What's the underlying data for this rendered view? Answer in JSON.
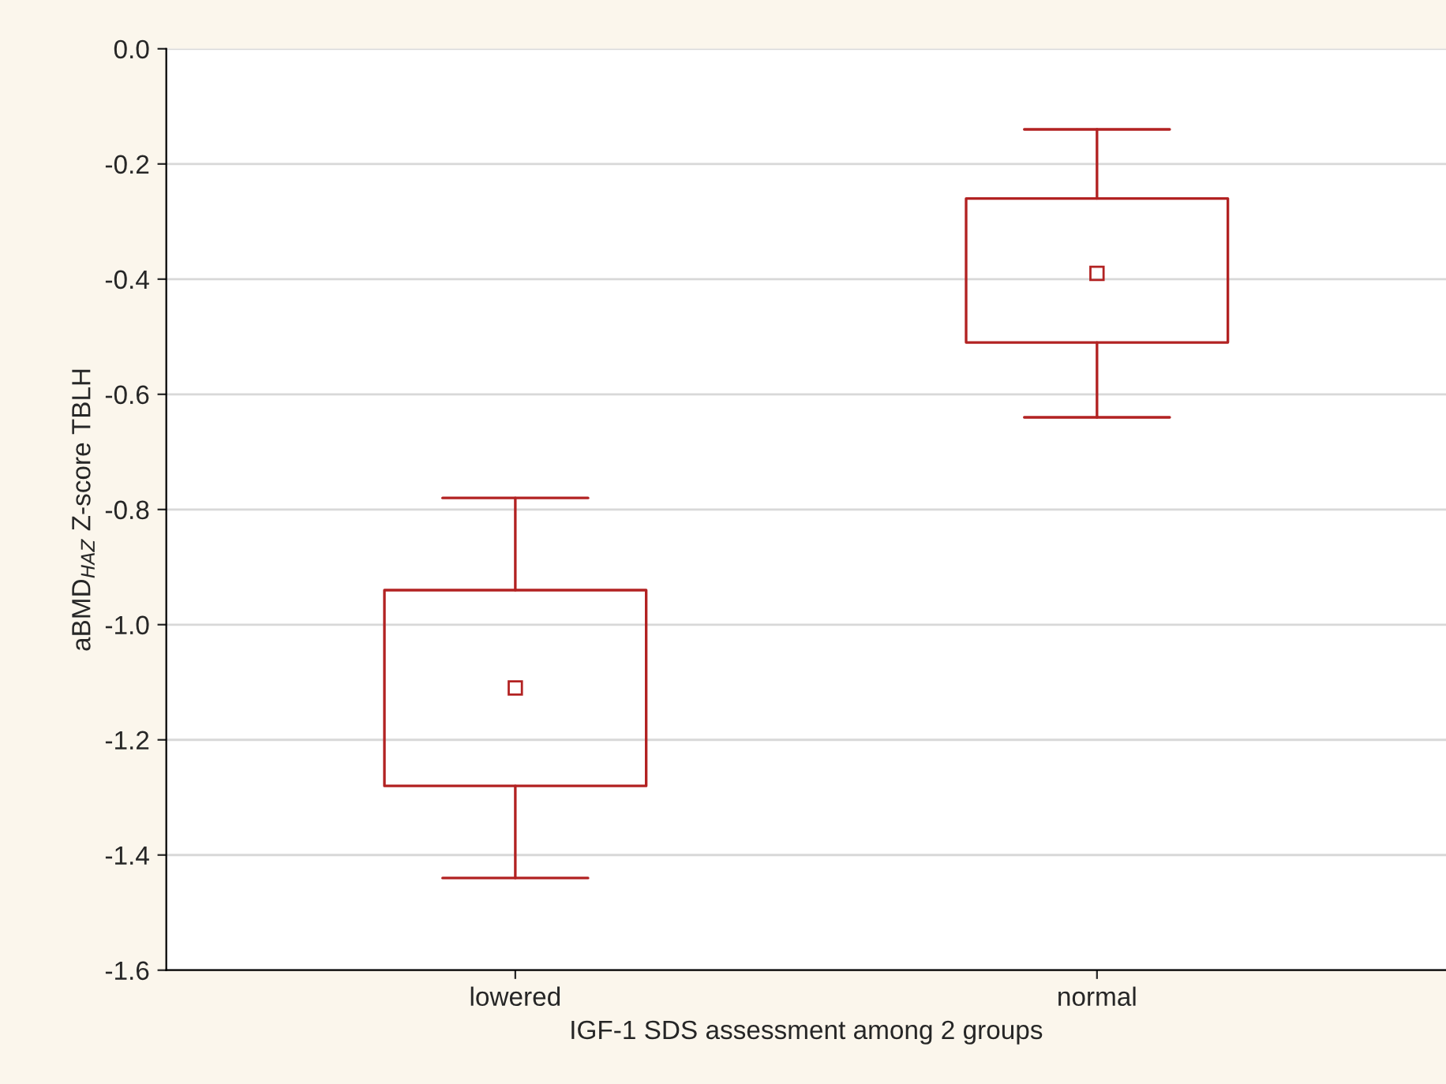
{
  "chart_data": {
    "type": "box",
    "xlabel": "IGF-1 SDS assessment among 2 groups",
    "ylabel": "aBMD$_{HAZ}$ Z-score TBLH",
    "categories": [
      "lowered",
      "normal"
    ],
    "boxes": [
      {
        "low": -1.44,
        "q1": -1.28,
        "median": -1.11,
        "q3": -0.94,
        "high": -0.78
      },
      {
        "low": -0.64,
        "q1": -0.51,
        "median": -0.39,
        "q3": -0.26,
        "high": -0.14
      }
    ],
    "color": "#b22222",
    "ylim": [
      -1.6,
      0.0
    ],
    "yticks": [
      {
        "value": -1.6,
        "label": "-1.6"
      },
      {
        "value": -1.4,
        "label": "-1.4"
      },
      {
        "value": -1.2,
        "label": "-1.2"
      },
      {
        "value": -1.0,
        "label": "-1.0"
      },
      {
        "value": -0.8,
        "label": "-0.8"
      },
      {
        "value": -0.6,
        "label": "-0.6"
      },
      {
        "value": -0.4,
        "label": "-0.4"
      },
      {
        "value": -0.2,
        "label": "-0.2"
      },
      {
        "value": 0.0,
        "label": "0.0"
      }
    ],
    "grid": "y",
    "marker": "square"
  }
}
